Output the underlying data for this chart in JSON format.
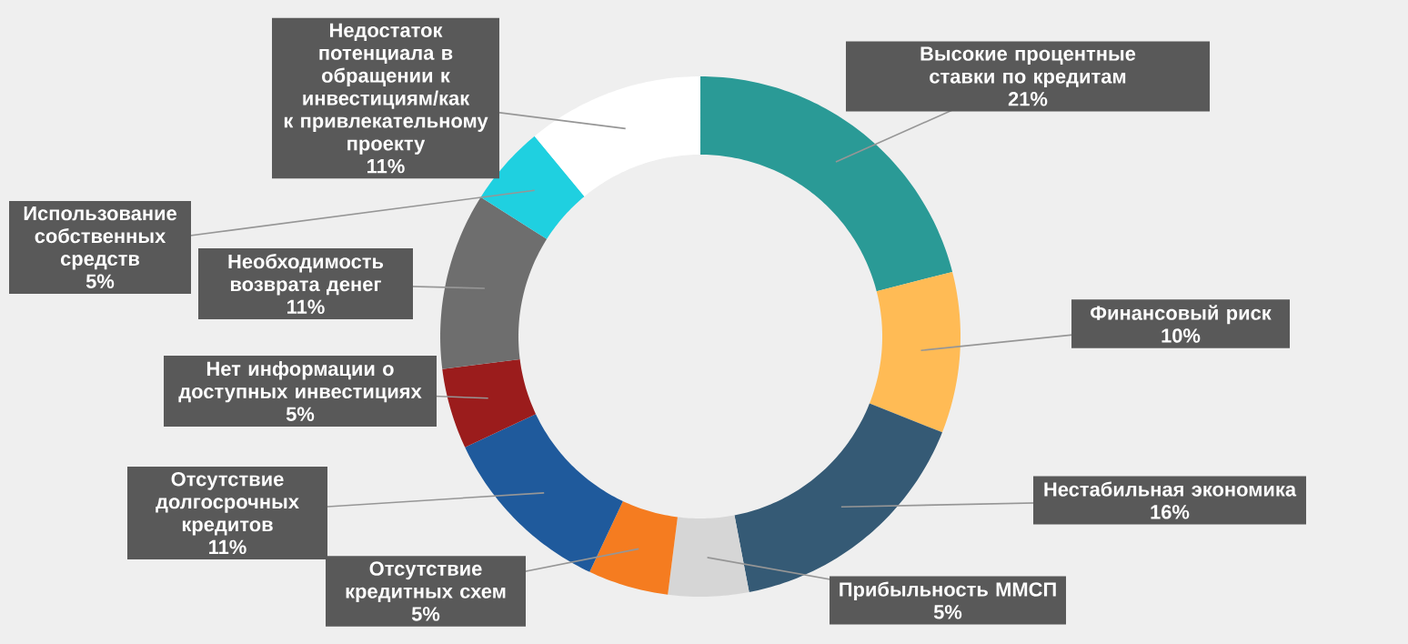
{
  "chart_data": {
    "type": "donut",
    "categories": [
      "Высокие процентные ставки по кредитам",
      "Финансовый риск",
      "Нестабильная экономика",
      "Прибыльность ММСП",
      "Отсутствие кредитных схем",
      "Отсутствие долгосрочных кредитов",
      "Нет информации о доступных инвестициях",
      "Необходимость возврата денег",
      "Использование собственных средств",
      "Недостаток потенциала в обращении к инвестициям/как к привлекательному проекту"
    ],
    "values": [
      21,
      10,
      16,
      5,
      5,
      11,
      5,
      11,
      5,
      11
    ],
    "value_labels": [
      "21%",
      "10%",
      "16%",
      "5%",
      "5%",
      "11%",
      "5%",
      "11%",
      "5%",
      "11%"
    ],
    "colors": [
      "#2a9a96",
      "#ffbb55",
      "#355a75",
      "#d6d6d6",
      "#f57c20",
      "#1f5a9c",
      "#9b1c1c",
      "#6e6e6e",
      "#1fd0e0",
      "#ffffff"
    ]
  }
}
